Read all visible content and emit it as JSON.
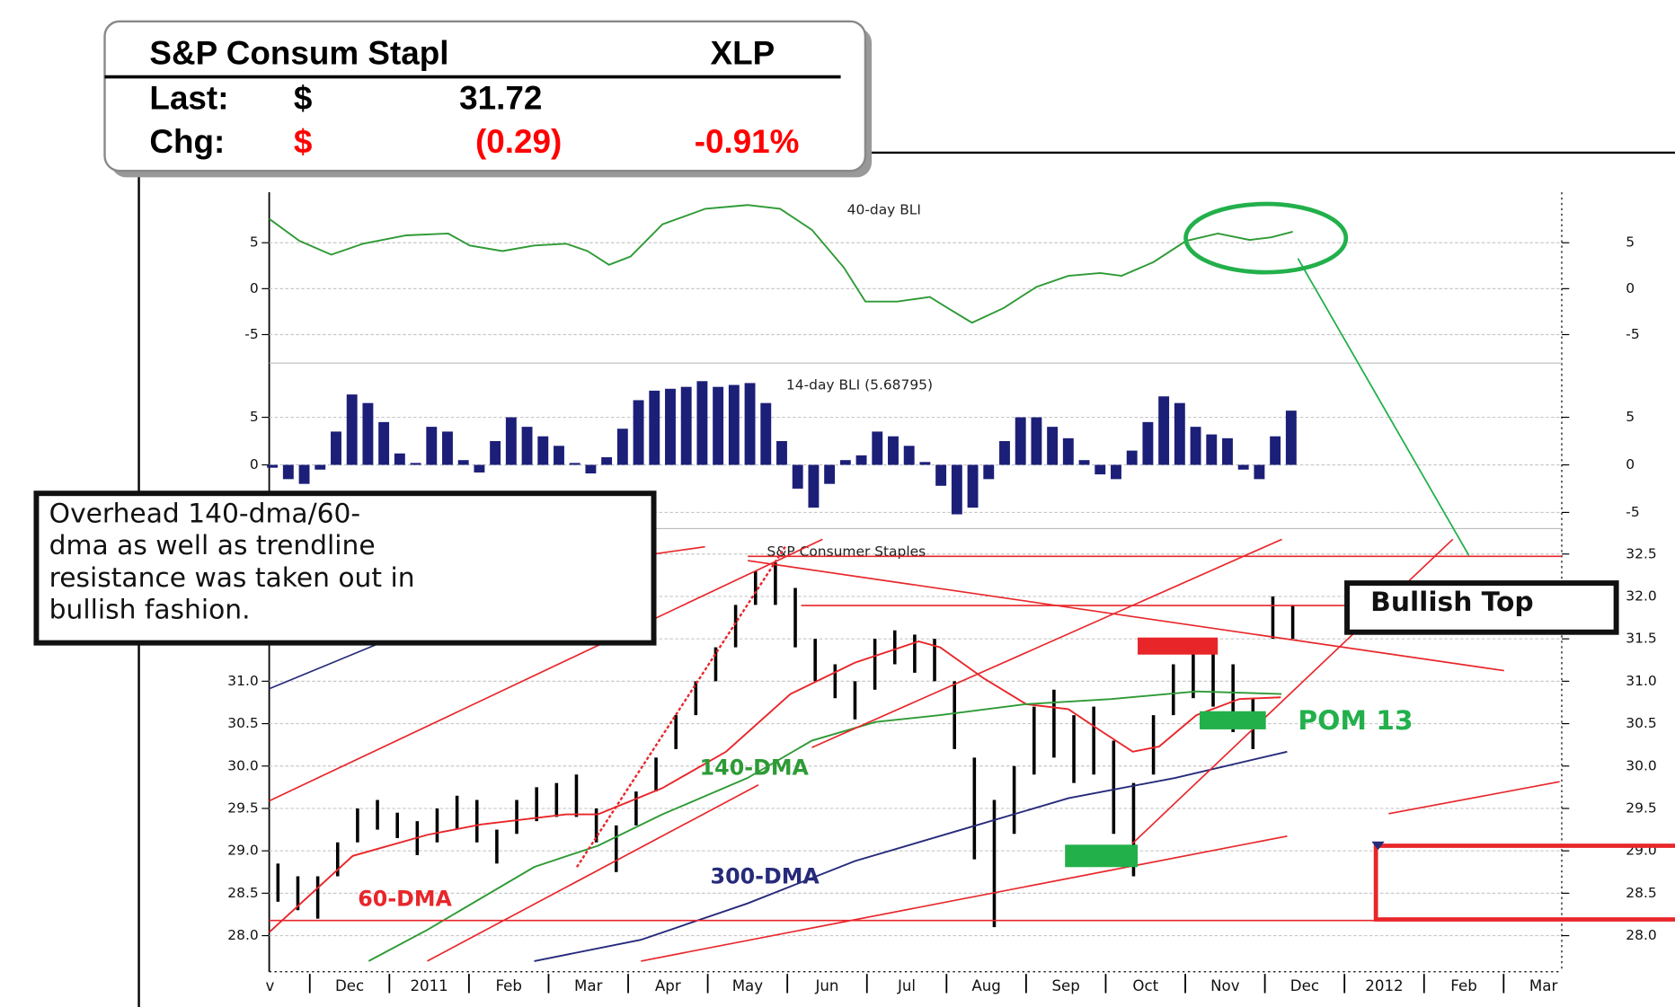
{
  "quote": {
    "name": "S&P Consum Stapl",
    "symbol": "XLP",
    "last_label": "Last:",
    "last_currency": "$",
    "last": 31.72,
    "chg_label": "Chg:",
    "chg_currency": "$",
    "chg": "(0.29)",
    "chg_pct": "-0.91%"
  },
  "annotations": {
    "callout": [
      "Overhead 140-dma/60-",
      "dma as well as trendline",
      "resistance was taken out in",
      "bullish fashion."
    ],
    "bullish_top": "Bullish Top",
    "pom": "POM 13"
  },
  "chart_data": [
    {
      "type": "line",
      "title": "40-day BLI",
      "ylim": [
        -8.1,
        10.5
      ],
      "yticks": [
        -5,
        0,
        5
      ],
      "grid": true,
      "xlim": [
        -0.51,
        15.73
      ],
      "series": [
        {
          "name": "40-day BLI",
          "color": "#2e9a35",
          "x": [
            -0.51,
            -0.13,
            0.27,
            0.67,
            1.21,
            1.74,
            2.01,
            2.42,
            2.82,
            3.22,
            3.49,
            3.76,
            4.03,
            4.43,
            4.97,
            5.5,
            5.91,
            6.31,
            6.71,
            6.98,
            7.38,
            7.79,
            8.05,
            8.32,
            8.72,
            9.13,
            9.53,
            9.93,
            10.2,
            10.6,
            11.01,
            11.41,
            11.81,
            12.08,
            12.35
          ],
          "values": [
            7.6,
            5.2,
            3.7,
            4.9,
            5.8,
            6.0,
            4.7,
            4.1,
            4.7,
            4.9,
            4.1,
            2.6,
            3.5,
            7.0,
            8.7,
            9.1,
            8.7,
            6.4,
            2.3,
            -1.4,
            -1.4,
            -0.9,
            -2.3,
            -3.7,
            -2.1,
            0.2,
            1.4,
            1.7,
            1.4,
            2.9,
            5.2,
            6.0,
            5.3,
            5.6,
            6.2
          ]
        }
      ]
    },
    {
      "type": "bar",
      "title": "14-day BLI (5.68795)",
      "ylim": [
        -6.7,
        10.7
      ],
      "yticks": [
        -5,
        0,
        5
      ],
      "grid": true,
      "xlim": [
        -0.51,
        15.73
      ],
      "color": "#1c1f78",
      "x": [
        -0.47,
        -0.27,
        -0.07,
        0.13,
        0.33,
        0.53,
        0.73,
        0.93,
        1.13,
        1.33,
        1.53,
        1.73,
        1.93,
        2.13,
        2.33,
        2.53,
        2.73,
        2.93,
        3.13,
        3.33,
        3.53,
        3.73,
        3.93,
        4.13,
        4.33,
        4.53,
        4.73,
        4.93,
        5.13,
        5.33,
        5.53,
        5.73,
        5.93,
        6.13,
        6.33,
        6.53,
        6.73,
        6.93,
        7.13,
        7.33,
        7.53,
        7.73,
        7.93,
        8.13,
        8.33,
        8.53,
        8.73,
        8.93,
        9.13,
        9.33,
        9.53,
        9.73,
        9.93,
        10.13,
        10.33,
        10.53,
        10.73,
        10.93,
        11.13,
        11.33,
        11.53,
        11.73,
        11.93,
        12.13,
        12.33
      ],
      "values": [
        -0.3,
        -1.5,
        -2.0,
        -0.5,
        3.5,
        7.4,
        6.5,
        4.5,
        1.2,
        0.2,
        4.0,
        3.5,
        0.5,
        -0.8,
        2.5,
        5.0,
        4.0,
        3.0,
        2.0,
        0.2,
        -0.9,
        0.8,
        3.8,
        6.8,
        7.8,
        8.0,
        8.2,
        8.8,
        8.2,
        8.4,
        8.6,
        6.5,
        2.5,
        -2.5,
        -4.5,
        -2.0,
        0.5,
        1.0,
        3.5,
        3.0,
        2.0,
        0.3,
        -2.2,
        -5.2,
        -4.5,
        -1.5,
        2.5,
        5.0,
        5.0,
        4.0,
        2.8,
        0.5,
        -1.0,
        -1.5,
        1.5,
        4.5,
        7.2,
        6.5,
        4.0,
        3.2,
        2.8,
        -0.5,
        -1.5,
        3.0,
        5.7
      ]
    },
    {
      "type": "range",
      "title": "S&P Consumer Staples",
      "ylim": [
        27.7,
        32.8
      ],
      "grid": true,
      "color": "#000000",
      "yticks": [
        {
          "value": 28,
          "label": "28.0"
        },
        28.5,
        {
          "value": 29,
          "label": "29.0"
        },
        29.5,
        {
          "value": 30,
          "label": "30.0"
        },
        30.5,
        {
          "value": 31,
          "label": "31.0"
        },
        31.5,
        {
          "value": 32,
          "label": "32.0"
        },
        32.5
      ],
      "xlim": [
        -0.51,
        15.73
      ],
      "xticks": [
        {
          "value": -1,
          "label": "v"
        },
        {
          "value": 0,
          "label": "Dec"
        },
        {
          "value": 1,
          "label": "2011"
        },
        {
          "value": 2,
          "label": "Feb"
        },
        {
          "value": 3,
          "label": "Mar"
        },
        {
          "value": 4,
          "label": "Apr"
        },
        {
          "value": 5,
          "label": "May"
        },
        {
          "value": 6,
          "label": "Jun"
        },
        {
          "value": 7,
          "label": "Jul"
        },
        {
          "value": 8,
          "label": "Aug"
        },
        {
          "value": 9,
          "label": "Sep"
        },
        {
          "value": 10,
          "label": "Oct"
        },
        {
          "value": 11,
          "label": "Nov"
        },
        {
          "value": 12,
          "label": "Dec"
        },
        {
          "value": 13,
          "label": "2012"
        },
        {
          "value": 14,
          "label": "Feb"
        },
        {
          "value": 15,
          "label": "Mar"
        }
      ],
      "x": [
        -0.4,
        -0.15,
        0.1,
        0.35,
        0.6,
        0.85,
        1.1,
        1.35,
        1.6,
        1.85,
        2.1,
        2.35,
        2.6,
        2.85,
        3.1,
        3.35,
        3.6,
        3.85,
        4.1,
        4.35,
        4.6,
        4.85,
        5.1,
        5.35,
        5.6,
        5.85,
        6.1,
        6.35,
        6.6,
        6.85,
        7.1,
        7.35,
        7.6,
        7.85,
        8.1,
        8.35,
        8.6,
        8.85,
        9.1,
        9.35,
        9.6,
        9.85,
        10.1,
        10.35,
        10.6,
        10.85,
        11.1,
        11.35,
        11.6,
        11.85,
        12.1,
        12.35
      ],
      "high": [
        28.85,
        28.7,
        28.7,
        29.1,
        29.5,
        29.6,
        29.45,
        29.35,
        29.5,
        29.65,
        29.6,
        29.25,
        29.6,
        29.75,
        29.8,
        29.9,
        29.5,
        29.3,
        29.7,
        30.1,
        30.6,
        31.0,
        31.4,
        31.9,
        32.3,
        32.4,
        32.1,
        31.5,
        31.2,
        31.0,
        31.5,
        31.6,
        31.55,
        31.5,
        31.0,
        30.1,
        29.6,
        30.0,
        30.7,
        30.9,
        30.6,
        30.7,
        30.3,
        29.8,
        30.6,
        31.2,
        31.4,
        31.4,
        31.2,
        30.8,
        32.0,
        31.9
      ],
      "low": [
        28.4,
        28.3,
        28.2,
        28.7,
        29.1,
        29.25,
        29.15,
        28.95,
        29.1,
        29.25,
        29.1,
        28.85,
        29.2,
        29.35,
        29.4,
        29.4,
        29.1,
        28.75,
        29.3,
        29.7,
        30.2,
        30.6,
        31.0,
        31.4,
        31.9,
        31.9,
        31.4,
        31.0,
        30.8,
        30.55,
        30.9,
        31.2,
        31.1,
        31.0,
        30.2,
        28.9,
        28.1,
        29.2,
        29.9,
        30.1,
        29.8,
        29.9,
        29.2,
        28.7,
        29.9,
        30.6,
        30.8,
        30.7,
        30.4,
        30.2,
        31.5,
        31.5
      ],
      "series": [
        {
          "name": "60-DMA",
          "color": "#e8262a",
          "x": [
            -0.51,
            0.54,
            1.48,
            2.15,
            3.22,
            3.62,
            4.43,
            5.23,
            6.04,
            6.85,
            7.65,
            7.92,
            8.46,
            9.0,
            9.53,
            9.93,
            10.34,
            10.67,
            11.14,
            11.68,
            12.2
          ],
          "values": [
            28.04,
            28.94,
            29.19,
            29.31,
            29.43,
            29.43,
            29.74,
            30.17,
            30.85,
            31.22,
            31.47,
            31.4,
            31.04,
            30.73,
            30.67,
            30.42,
            30.17,
            30.23,
            30.6,
            30.79,
            30.81
          ]
        },
        {
          "name": "140-DMA",
          "color": "#2e9a35",
          "x": [
            0.74,
            1.48,
            2.82,
            3.62,
            4.43,
            5.5,
            6.31,
            7.11,
            7.92,
            9.0,
            10.07,
            11.14,
            12.21
          ],
          "values": [
            27.7,
            28.07,
            28.81,
            29.06,
            29.43,
            29.86,
            30.3,
            30.52,
            30.6,
            30.73,
            30.79,
            30.88,
            30.85
          ]
        },
        {
          "name": "300-DMA",
          "color": "#262a7a",
          "x": [
            2.82,
            4.16,
            5.5,
            6.85,
            8.19,
            9.53,
            10.87,
            12.28
          ],
          "values": [
            27.7,
            27.95,
            28.38,
            28.88,
            29.25,
            29.62,
            29.86,
            30.17
          ]
        }
      ]
    }
  ]
}
